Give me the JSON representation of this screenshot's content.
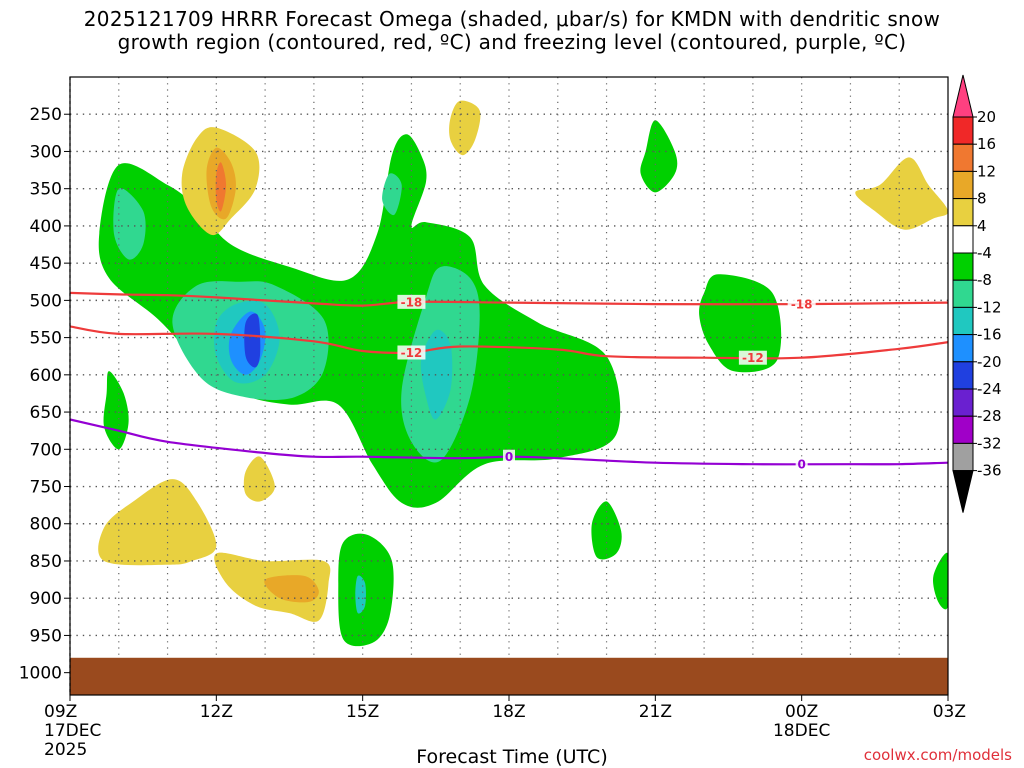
{
  "title": {
    "line1": "2025121709 HRRR Forecast Omega (shaded, μbar/s) for KMDN with dendritic snow",
    "line2": "growth region (contoured, red, ºC) and freezing level (contoured, purple, ºC)"
  },
  "credit": "coolwx.com/models",
  "colors": {
    "ground": "#9a4a1e",
    "dgz_contour": "#ee3b3b",
    "freezing_contour": "#9400d3",
    "grid": "#999999"
  },
  "chart_data": {
    "type": "time-height omega cross-section",
    "xlabel": "Forecast Time (UTC)",
    "ylabel": "",
    "x_ticks": [
      {
        "label": "09Z",
        "sub1": "17DEC",
        "sub2": "2025",
        "hour": 0
      },
      {
        "label": "12Z",
        "sub1": "",
        "sub2": "",
        "hour": 3
      },
      {
        "label": "15Z",
        "sub1": "",
        "sub2": "",
        "hour": 6
      },
      {
        "label": "18Z",
        "sub1": "",
        "sub2": "",
        "hour": 9
      },
      {
        "label": "21Z",
        "sub1": "",
        "sub2": "",
        "hour": 12
      },
      {
        "label": "00Z",
        "sub1": "18DEC",
        "sub2": "",
        "hour": 15
      },
      {
        "label": "03Z",
        "sub1": "",
        "sub2": "",
        "hour": 18
      }
    ],
    "xlim": [
      0,
      18
    ],
    "y_ticks": [
      "250",
      "300",
      "350",
      "400",
      "450",
      "500",
      "550",
      "600",
      "650",
      "700",
      "750",
      "800",
      "850",
      "900",
      "950",
      "1000"
    ],
    "ylim_hPa": [
      200,
      1030
    ],
    "ground_top_hPa": 980,
    "colorbar": {
      "labels": [
        "20",
        "16",
        "12",
        "8",
        "4",
        "-4",
        "-8",
        "-12",
        "-16",
        "-20",
        "-24",
        "-28",
        "-32",
        "-36"
      ],
      "colors": [
        "#ff4080",
        "#f02828",
        "#f07830",
        "#e8a828",
        "#e8d040",
        "#ffffff",
        "#00d000",
        "#30d890",
        "#20c8c0",
        "#1e90ff",
        "#2040e0",
        "#6a20d0",
        "#a000c8",
        "#a0a0a0",
        "#000000"
      ]
    },
    "contours": [
      {
        "name": "-18",
        "color": "#ee3b3b",
        "points": [
          [
            0,
            490
          ],
          [
            1,
            492
          ],
          [
            2,
            493
          ],
          [
            3,
            496
          ],
          [
            5,
            504
          ],
          [
            6,
            507
          ],
          [
            7,
            502
          ],
          [
            9,
            503
          ],
          [
            12,
            505
          ],
          [
            15,
            505
          ],
          [
            18,
            503
          ]
        ],
        "labels": [
          {
            "text": "-18",
            "hour": 7
          },
          {
            "text": "-18",
            "hour": 15
          }
        ]
      },
      {
        "name": "-12",
        "color": "#ee3b3b",
        "points": [
          [
            0,
            535
          ],
          [
            1,
            545
          ],
          [
            3,
            545
          ],
          [
            5,
            555
          ],
          [
            6,
            568
          ],
          [
            7,
            570
          ],
          [
            8,
            562
          ],
          [
            10,
            566
          ],
          [
            11,
            575
          ],
          [
            13,
            577
          ],
          [
            15,
            577
          ],
          [
            17,
            565
          ],
          [
            18,
            556
          ]
        ],
        "labels": [
          {
            "text": "-12",
            "hour": 7
          },
          {
            "text": "-12",
            "hour": 14
          }
        ]
      },
      {
        "name": "0",
        "color": "#9400d3",
        "points": [
          [
            0,
            660
          ],
          [
            1,
            675
          ],
          [
            2,
            690
          ],
          [
            4,
            705
          ],
          [
            5,
            710
          ],
          [
            6,
            710
          ],
          [
            8,
            712
          ],
          [
            9,
            710
          ],
          [
            10,
            712
          ],
          [
            12,
            718
          ],
          [
            14,
            720
          ],
          [
            16,
            720
          ],
          [
            17,
            720
          ],
          [
            18,
            718
          ]
        ],
        "labels": [
          {
            "text": "0",
            "hour": 9
          },
          {
            "text": "0",
            "hour": 15
          }
        ]
      }
    ],
    "omega_regions": [
      {
        "value": -6,
        "points": [
          [
            1.0,
            318
          ],
          [
            2.0,
            345
          ],
          [
            2.6,
            375
          ],
          [
            3.3,
            425
          ],
          [
            4.5,
            455
          ],
          [
            5.7,
            472
          ],
          [
            6.3,
            410
          ],
          [
            6.6,
            305
          ],
          [
            6.9,
            277
          ],
          [
            7.2,
            305
          ],
          [
            7.3,
            340
          ],
          [
            7.0,
            400
          ],
          [
            7.3,
            395
          ],
          [
            8.2,
            415
          ],
          [
            8.5,
            480
          ],
          [
            9.6,
            530
          ],
          [
            11.0,
            575
          ],
          [
            11.2,
            680
          ],
          [
            10.0,
            712
          ],
          [
            8.5,
            720
          ],
          [
            7.5,
            772
          ],
          [
            6.8,
            772
          ],
          [
            6.2,
            720
          ],
          [
            5.5,
            640
          ],
          [
            4.5,
            640
          ],
          [
            3.5,
            625
          ],
          [
            2.6,
            580
          ],
          [
            1.8,
            525
          ],
          [
            0.8,
            470
          ],
          [
            0.6,
            410
          ]
        ]
      },
      {
        "value": -6,
        "points": [
          [
            0.8,
            595
          ],
          [
            1.1,
            625
          ],
          [
            1.2,
            665
          ],
          [
            1.0,
            700
          ],
          [
            0.7,
            670
          ],
          [
            0.75,
            625
          ]
        ]
      },
      {
        "value": -6,
        "points": [
          [
            5.6,
            825
          ],
          [
            6.1,
            815
          ],
          [
            6.6,
            850
          ],
          [
            6.55,
            925
          ],
          [
            6.2,
            960
          ],
          [
            5.6,
            955
          ],
          [
            5.5,
            880
          ]
        ]
      },
      {
        "value": -6,
        "points": [
          [
            11.8,
            300
          ],
          [
            12.0,
            258
          ],
          [
            12.4,
            300
          ],
          [
            12.4,
            330
          ],
          [
            12.0,
            355
          ],
          [
            11.7,
            330
          ]
        ]
      },
      {
        "value": -6,
        "points": [
          [
            13.0,
            490
          ],
          [
            13.3,
            465
          ],
          [
            14.4,
            490
          ],
          [
            14.5,
            580
          ],
          [
            13.6,
            595
          ],
          [
            13.1,
            560
          ],
          [
            12.9,
            520
          ]
        ]
      },
      {
        "value": -6,
        "points": [
          [
            11.0,
            770
          ],
          [
            11.3,
            810
          ],
          [
            11.2,
            840
          ],
          [
            10.8,
            845
          ],
          [
            10.7,
            800
          ]
        ]
      },
      {
        "value": -6,
        "points": [
          [
            18.0,
            840
          ],
          [
            17.7,
            870
          ],
          [
            17.8,
            905
          ],
          [
            18.0,
            910
          ]
        ]
      },
      {
        "value": -10,
        "points": [
          [
            1.0,
            350
          ],
          [
            1.5,
            380
          ],
          [
            1.5,
            425
          ],
          [
            1.2,
            445
          ],
          [
            0.9,
            410
          ]
        ]
      },
      {
        "value": -10,
        "points": [
          [
            2.1,
            530
          ],
          [
            2.6,
            480
          ],
          [
            3.5,
            475
          ],
          [
            4.2,
            480
          ],
          [
            5.2,
            525
          ],
          [
            5.2,
            595
          ],
          [
            4.6,
            630
          ],
          [
            3.6,
            630
          ],
          [
            2.7,
            605
          ]
        ]
      },
      {
        "value": -10,
        "points": [
          [
            6.55,
            330
          ],
          [
            6.8,
            345
          ],
          [
            6.65,
            385
          ],
          [
            6.4,
            365
          ]
        ]
      },
      {
        "value": -10,
        "points": [
          [
            6.8,
            620
          ],
          [
            7.3,
            495
          ],
          [
            7.6,
            455
          ],
          [
            8.2,
            470
          ],
          [
            8.4,
            520
          ],
          [
            8.2,
            630
          ],
          [
            7.6,
            715
          ],
          [
            7.0,
            690
          ]
        ]
      },
      {
        "value": -14,
        "points": [
          [
            3.0,
            530
          ],
          [
            3.4,
            505
          ],
          [
            4.0,
            505
          ],
          [
            4.3,
            550
          ],
          [
            4.0,
            600
          ],
          [
            3.4,
            610
          ],
          [
            3.0,
            575
          ]
        ]
      },
      {
        "value": -14,
        "points": [
          [
            7.2,
            580
          ],
          [
            7.5,
            540
          ],
          [
            7.8,
            560
          ],
          [
            7.8,
            620
          ],
          [
            7.5,
            660
          ],
          [
            7.3,
            630
          ]
        ]
      },
      {
        "value": -14,
        "points": [
          [
            5.9,
            870
          ],
          [
            6.05,
            880
          ],
          [
            6.05,
            910
          ],
          [
            5.9,
            920
          ],
          [
            5.85,
            895
          ]
        ]
      },
      {
        "value": -18,
        "points": [
          [
            3.3,
            545
          ],
          [
            3.7,
            515
          ],
          [
            4.0,
            540
          ],
          [
            3.9,
            580
          ],
          [
            3.6,
            600
          ],
          [
            3.3,
            580
          ]
        ]
      },
      {
        "value": -22,
        "points": [
          [
            3.6,
            530
          ],
          [
            3.85,
            520
          ],
          [
            3.9,
            570
          ],
          [
            3.8,
            590
          ],
          [
            3.6,
            575
          ]
        ]
      },
      {
        "value": 6,
        "points": [
          [
            2.3,
            330
          ],
          [
            2.6,
            282
          ],
          [
            3.0,
            268
          ],
          [
            3.8,
            300
          ],
          [
            3.8,
            350
          ],
          [
            3.3,
            390
          ],
          [
            2.9,
            412
          ],
          [
            2.4,
            375
          ]
        ]
      },
      {
        "value": 6,
        "points": [
          [
            7.8,
            255
          ],
          [
            8.0,
            232
          ],
          [
            8.4,
            245
          ],
          [
            8.3,
            285
          ],
          [
            8.05,
            305
          ],
          [
            7.8,
            285
          ]
        ]
      },
      {
        "value": 6,
        "points": [
          [
            16.1,
            355
          ],
          [
            16.6,
            345
          ],
          [
            17.2,
            308
          ],
          [
            17.6,
            345
          ],
          [
            18.0,
            380
          ],
          [
            17.7,
            390
          ],
          [
            17.1,
            405
          ],
          [
            16.5,
            380
          ]
        ]
      },
      {
        "value": 6,
        "points": [
          [
            0.7,
            805
          ],
          [
            1.3,
            770
          ],
          [
            2.1,
            740
          ],
          [
            2.6,
            770
          ],
          [
            3.0,
            830
          ],
          [
            2.5,
            850
          ],
          [
            2.0,
            855
          ],
          [
            0.7,
            850
          ]
        ]
      },
      {
        "value": 6,
        "points": [
          [
            3.0,
            840
          ],
          [
            4.0,
            850
          ],
          [
            5.2,
            850
          ],
          [
            5.3,
            880
          ],
          [
            5.1,
            930
          ],
          [
            4.5,
            920
          ],
          [
            3.8,
            910
          ],
          [
            3.2,
            880
          ]
        ]
      },
      {
        "value": 6,
        "points": [
          [
            3.6,
            730
          ],
          [
            3.9,
            710
          ],
          [
            4.2,
            750
          ],
          [
            3.9,
            770
          ],
          [
            3.6,
            760
          ]
        ]
      },
      {
        "value": 10,
        "points": [
          [
            2.8,
            325
          ],
          [
            3.0,
            295
          ],
          [
            3.3,
            315
          ],
          [
            3.4,
            350
          ],
          [
            3.2,
            390
          ],
          [
            2.9,
            375
          ]
        ]
      },
      {
        "value": 10,
        "points": [
          [
            4.0,
            875
          ],
          [
            4.8,
            870
          ],
          [
            5.1,
            890
          ],
          [
            4.9,
            905
          ],
          [
            4.3,
            900
          ]
        ]
      },
      {
        "value": 14,
        "points": [
          [
            3.0,
            330
          ],
          [
            3.1,
            315
          ],
          [
            3.2,
            345
          ],
          [
            3.1,
            380
          ],
          [
            3.0,
            365
          ]
        ]
      }
    ]
  }
}
